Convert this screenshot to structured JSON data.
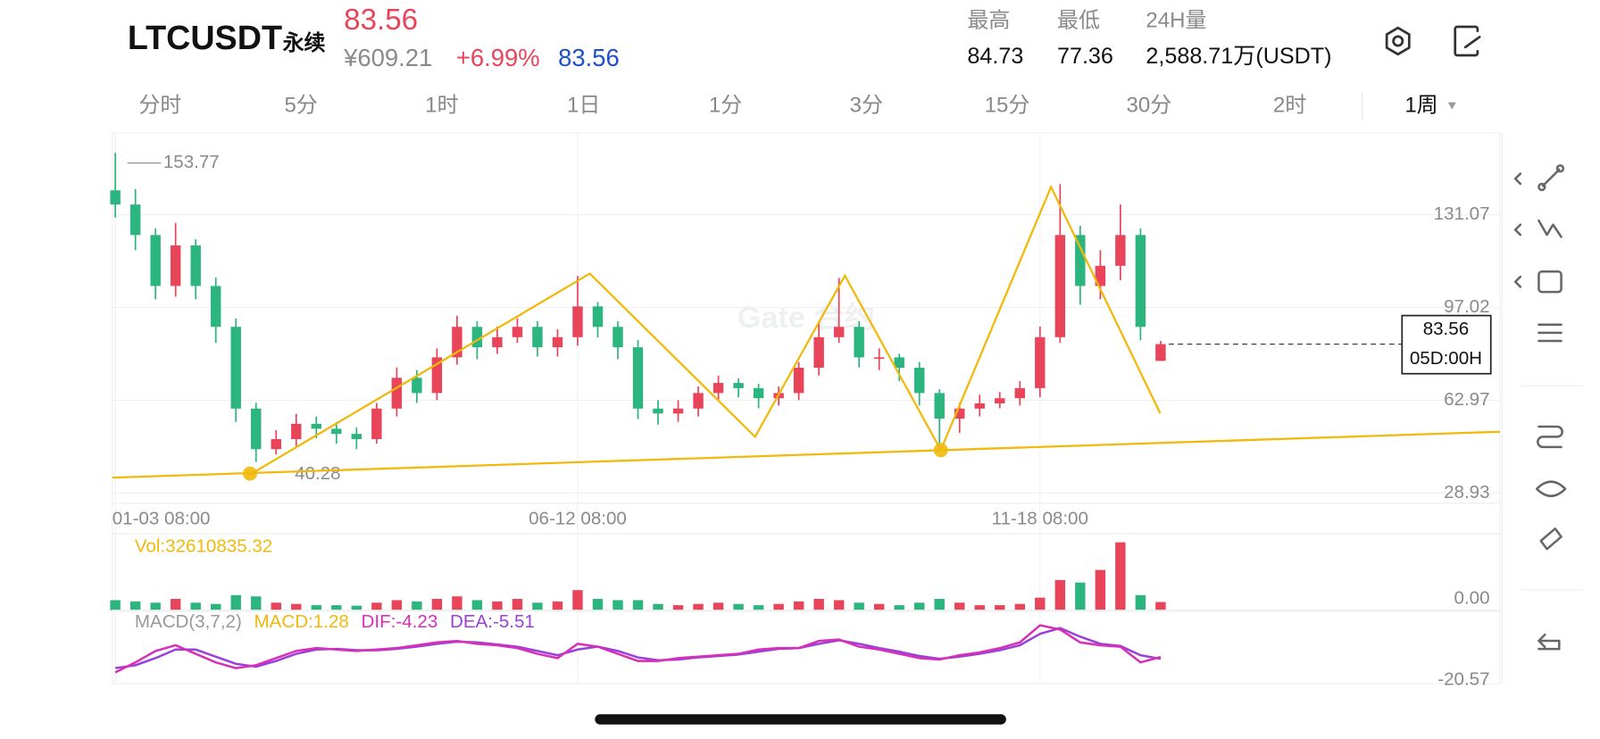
{
  "header": {
    "symbol": "LTCUSDT",
    "contract": "永续",
    "price": "83.56",
    "cny": "¥609.21",
    "change": "+6.99%",
    "mark": "83.56"
  },
  "stats": [
    {
      "label": "最高",
      "value": "84.73"
    },
    {
      "label": "最低",
      "value": "77.36"
    },
    {
      "label": "24H量",
      "value": "2,588.71万(USDT)"
    }
  ],
  "tabs": [
    "分时",
    "5分",
    "1时",
    "1日",
    "1分",
    "3分",
    "15分",
    "30分",
    "2时",
    "1周"
  ],
  "chart_data": {
    "type": "candlestick",
    "watermark": "Gate 合约",
    "countdown": "05D:00H",
    "categories": [
      "01-03 08:00",
      null,
      null,
      null,
      null,
      null,
      null,
      null,
      null,
      null,
      null,
      null,
      null,
      null,
      null,
      null,
      null,
      null,
      null,
      null,
      null,
      null,
      null,
      "06-12 08:00",
      null,
      null,
      null,
      null,
      null,
      null,
      null,
      null,
      null,
      null,
      null,
      null,
      null,
      null,
      null,
      null,
      null,
      null,
      null,
      null,
      null,
      null,
      "11-18 08:00",
      null,
      null,
      null,
      null,
      null,
      null
    ],
    "open": [
      140,
      134.8,
      123.6,
      104.9,
      119.8,
      104.9,
      89.9,
      59.9,
      45.0,
      48.7,
      54.3,
      52.5,
      50.6,
      48.7,
      59.9,
      71.2,
      65.6,
      78.7,
      89.9,
      82.4,
      86.1,
      89.9,
      82.4,
      86.1,
      97.4,
      89.9,
      82.4,
      59.9,
      58.1,
      59.9,
      65.6,
      69.3,
      67.4,
      63.7,
      65.6,
      74.9,
      86.1,
      89.9,
      78.7,
      78.7,
      74.9,
      65.6,
      56.2,
      59.9,
      61.8,
      63.7,
      67.4,
      86.1,
      123.6,
      104.9,
      112.3,
      123.6,
      77.4
    ],
    "high": [
      153.77,
      140.5,
      126,
      128,
      122,
      108,
      93,
      62,
      52,
      58,
      57,
      55,
      53,
      62,
      75,
      74,
      82,
      94,
      92,
      90,
      93,
      92,
      89,
      108.6,
      99,
      92,
      85,
      63,
      63,
      68,
      72,
      71,
      69,
      68,
      77,
      92,
      107.9,
      92,
      82,
      80,
      77,
      67,
      62,
      65,
      66,
      70,
      90,
      142.3,
      127,
      118,
      134.8,
      126,
      84.73
    ],
    "low": [
      130,
      118,
      100,
      101,
      100,
      84,
      55,
      40.28,
      43,
      46,
      49,
      47,
      45,
      47,
      57,
      62,
      63,
      76,
      78,
      80,
      84,
      79,
      79,
      83,
      86,
      78,
      56,
      54,
      55,
      57,
      63,
      64,
      60,
      61,
      63,
      72,
      84,
      75,
      74,
      70,
      61,
      45,
      51,
      57,
      60,
      61,
      64,
      84,
      98,
      100,
      107,
      85,
      77.36
    ],
    "close": [
      134.8,
      123.6,
      104.9,
      119.8,
      104.9,
      89.9,
      59.9,
      45.0,
      48.7,
      54.3,
      52.5,
      50.6,
      48.7,
      59.9,
      71.2,
      65.6,
      78.7,
      89.9,
      82.4,
      86.1,
      89.9,
      82.4,
      86.1,
      97.4,
      89.9,
      82.4,
      59.9,
      58.1,
      59.9,
      65.6,
      69.3,
      67.4,
      63.7,
      65.6,
      74.9,
      86.1,
      89.9,
      78.7,
      78.7,
      74.9,
      65.6,
      56.2,
      59.9,
      61.8,
      63.7,
      67.4,
      86.1,
      123.6,
      104.9,
      112.3,
      123.6,
      89.9,
      83.56
    ],
    "up_color": "#e8445a",
    "down_color": "#2db57f",
    "ylim": [
      25.2,
      161.1
    ],
    "yticks": [
      28.93,
      62.97,
      97.02,
      131.07
    ],
    "grid": true,
    "high_marker": 153.77,
    "low_marker": 40.28,
    "volume_label": "Vol:32610835.32",
    "volume": [
      40000000,
      35000000,
      30000000,
      45000000,
      30000000,
      25000000,
      60000000,
      55000000,
      30000000,
      25000000,
      20000000,
      20000000,
      18000000,
      30000000,
      40000000,
      35000000,
      45000000,
      55000000,
      40000000,
      35000000,
      45000000,
      30000000,
      35000000,
      80000000,
      45000000,
      40000000,
      40000000,
      25000000,
      20000000,
      25000000,
      30000000,
      25000000,
      20000000,
      25000000,
      35000000,
      45000000,
      40000000,
      30000000,
      25000000,
      20000000,
      30000000,
      45000000,
      30000000,
      20000000,
      20000000,
      25000000,
      50000000,
      120000000,
      110000000,
      160000000,
      270000000,
      60000000,
      32610835.32
    ],
    "volume_ylim": [
      0,
      300000000
    ],
    "volume_ticks": [
      {
        "value": 0,
        "label": "0.00"
      }
    ],
    "macd_labels": [
      {
        "text": "MACD(3,7,2)",
        "color": "#999999"
      },
      {
        "text": "MACD:1.28",
        "color": "#f0b90b"
      },
      {
        "text": "DIF:-4.23",
        "color": "#d62fb8"
      },
      {
        "text": "DEA:-5.51",
        "color": "#9b3fd9"
      }
    ],
    "dif": [
      -15,
      -8,
      0,
      4,
      -2,
      -8,
      -12,
      -10,
      -5,
      0,
      2,
      1,
      0,
      1,
      2,
      4,
      6,
      7,
      5,
      4,
      2,
      -2,
      -5,
      5,
      3,
      -2,
      -7,
      -7,
      -5,
      -4,
      -3,
      -2,
      1,
      2,
      2,
      7,
      8,
      3,
      1,
      -2,
      -5,
      -6,
      -3,
      -1,
      2,
      6,
      18,
      15,
      6,
      4,
      3,
      -8,
      -4.23
    ],
    "dea": [
      -12,
      -10,
      -5,
      1,
      1,
      -4,
      -9,
      -11,
      -7,
      -2,
      1,
      1.5,
      0.5,
      0.5,
      1.5,
      3,
      5,
      6.5,
      6,
      4.5,
      3,
      0,
      -3,
      1,
      3,
      0,
      -4.5,
      -6.5,
      -6,
      -4.5,
      -3.5,
      -2.5,
      -0.5,
      1.5,
      2,
      5,
      7.5,
      5,
      2,
      -0.5,
      -3.5,
      -5.5,
      -4,
      -2,
      0.5,
      4,
      12,
      16,
      10,
      5,
      3.5,
      -3,
      -5.51
    ],
    "dif_color": "#d62fb8",
    "dea_color": "#9b3fd9",
    "macd_ylim": [
      -22.9,
      27.1
    ],
    "macd_ticks": [
      -20.57
    ]
  }
}
